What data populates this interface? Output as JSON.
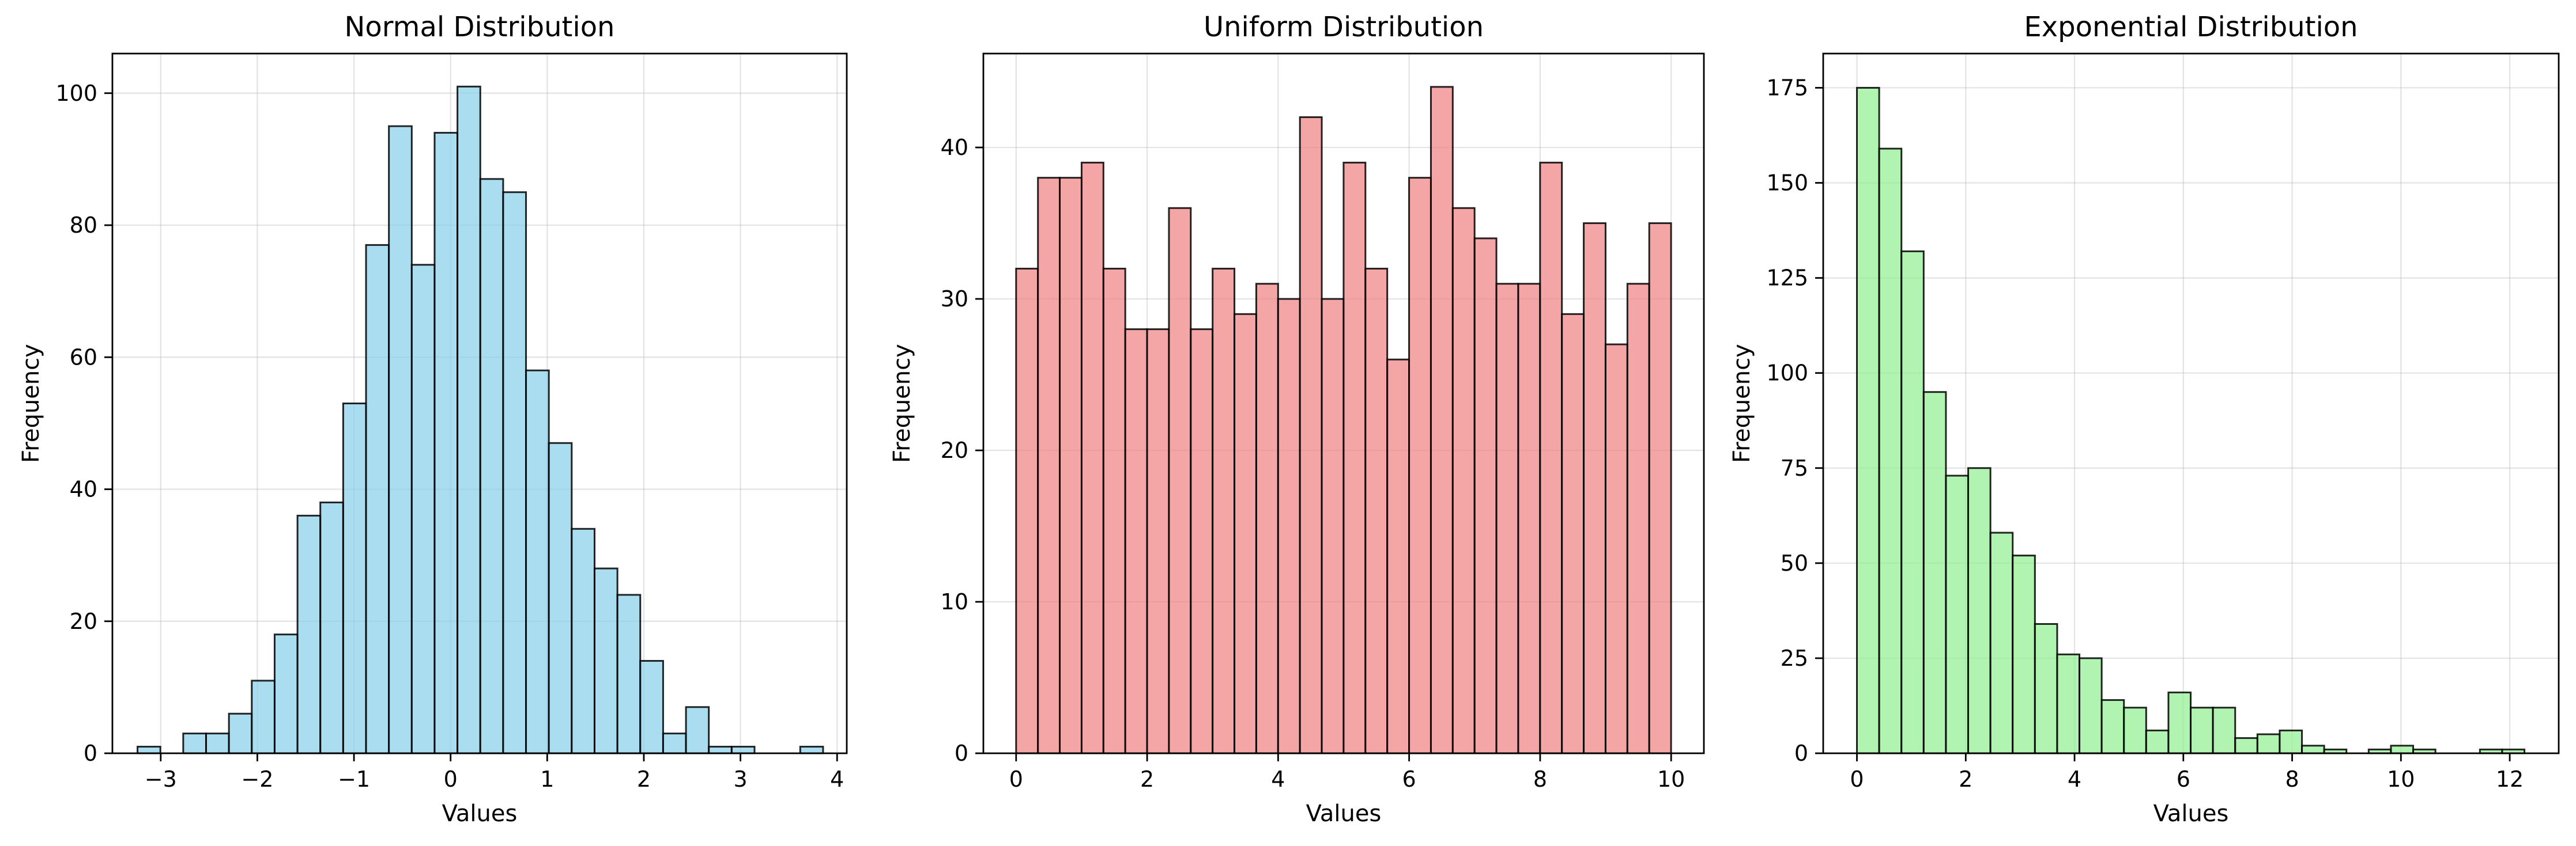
{
  "chart_data": [
    {
      "type": "bar",
      "title": "Normal Distribution",
      "xlabel": "Values",
      "ylabel": "Frequency",
      "xlim": [
        -3.5,
        4.1
      ],
      "ylim": [
        0,
        106
      ],
      "xticks": [
        -3,
        -2,
        -1,
        0,
        1,
        2,
        3,
        4
      ],
      "xtick_labels": [
        "−3",
        "−2",
        "−1",
        "0",
        "1",
        "2",
        "3",
        "4"
      ],
      "yticks": [
        0,
        20,
        40,
        60,
        80,
        100
      ],
      "ytick_labels": [
        "0",
        "20",
        "40",
        "60",
        "80",
        "100"
      ],
      "grid": true,
      "color": "#87ceeb",
      "bin_start": -3.24,
      "bin_width": 0.2365,
      "values": [
        1,
        0,
        3,
        3,
        6,
        11,
        18,
        36,
        38,
        53,
        77,
        95,
        74,
        94,
        101,
        87,
        85,
        58,
        47,
        34,
        28,
        24,
        14,
        3,
        7,
        1,
        1,
        0,
        0,
        1
      ]
    },
    {
      "type": "bar",
      "title": "Uniform Distribution",
      "xlabel": "Values",
      "ylabel": "Frequency",
      "xlim": [
        -0.5,
        10.5
      ],
      "ylim": [
        0,
        46.2
      ],
      "xticks": [
        0,
        2,
        4,
        6,
        8,
        10
      ],
      "xtick_labels": [
        "0",
        "2",
        "4",
        "6",
        "8",
        "10"
      ],
      "yticks": [
        0,
        10,
        20,
        30,
        40
      ],
      "ytick_labels": [
        "0",
        "10",
        "20",
        "30",
        "40"
      ],
      "grid": true,
      "color": "#f08080",
      "bin_start": 0,
      "bin_width": 0.3333,
      "values": [
        32,
        38,
        38,
        39,
        32,
        28,
        28,
        36,
        28,
        32,
        29,
        31,
        30,
        42,
        30,
        39,
        32,
        26,
        38,
        44,
        36,
        34,
        31,
        31,
        39,
        29,
        35,
        27,
        31,
        35
      ]
    },
    {
      "type": "bar",
      "title": "Exponential Distribution",
      "xlabel": "Values",
      "ylabel": "Frequency",
      "xlim": [
        -0.62,
        12.9
      ],
      "ylim": [
        0,
        184
      ],
      "xticks": [
        0,
        2,
        4,
        6,
        8,
        10,
        12
      ],
      "xtick_labels": [
        "0",
        "2",
        "4",
        "6",
        "8",
        "10",
        "12"
      ],
      "yticks": [
        0,
        25,
        50,
        75,
        100,
        125,
        150,
        175
      ],
      "ytick_labels": [
        "0",
        "25",
        "50",
        "75",
        "100",
        "125",
        "150",
        "175"
      ],
      "grid": true,
      "color": "#90ee90",
      "bin_start": 0.0,
      "bin_width": 0.409,
      "values": [
        175,
        159,
        132,
        95,
        73,
        75,
        58,
        52,
        34,
        26,
        25,
        14,
        12,
        6,
        16,
        12,
        12,
        4,
        5,
        6,
        2,
        1,
        0,
        1,
        2,
        1,
        0,
        0,
        1,
        1
      ]
    }
  ]
}
